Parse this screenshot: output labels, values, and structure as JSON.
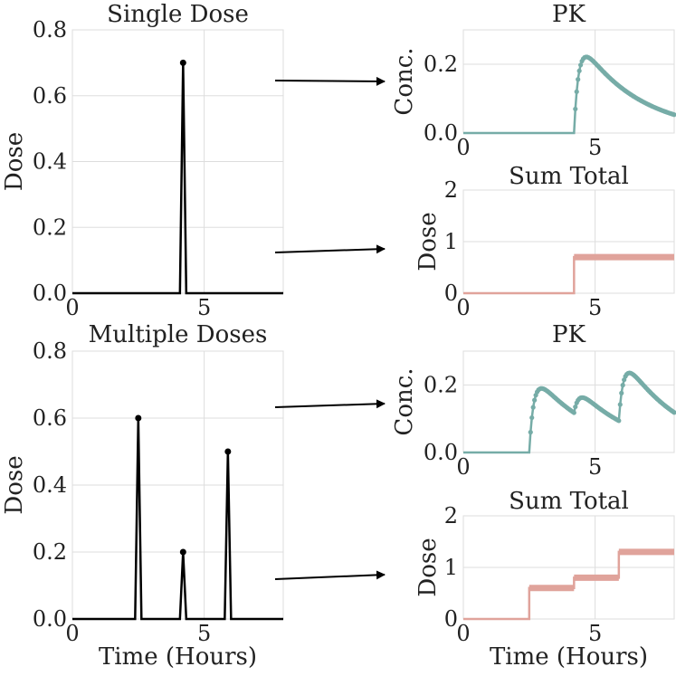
{
  "colors": {
    "dose": "#000000",
    "pk": "#76aca7",
    "sum": "#e0a39b",
    "arrow": "#000000",
    "grid": "#dddddd"
  },
  "shared_xlabel": "Time (Hours)",
  "chart_data": [
    {
      "id": "single-dose",
      "type": "line",
      "title": "Single Dose",
      "ylabel": "Dose",
      "xlabel": "",
      "xlim": [
        0,
        8
      ],
      "ylim": [
        0,
        0.8
      ],
      "xticks": [
        0,
        5
      ],
      "yticks": [
        0.0,
        0.2,
        0.4,
        0.6,
        0.8
      ],
      "ytick_labels": [
        "0.0",
        "0.2",
        "0.4",
        "0.6",
        "0.8"
      ],
      "xtick_labels": [
        "0",
        "5"
      ],
      "series": [
        {
          "style": "impulse",
          "color": "dose",
          "x": [
            4.2
          ],
          "y": [
            0.7
          ]
        }
      ]
    },
    {
      "id": "single-pk",
      "type": "line",
      "title": "PK",
      "ylabel": "Conc.",
      "xlabel": "",
      "xlim": [
        0,
        8
      ],
      "ylim": [
        0,
        0.3
      ],
      "xticks": [
        0,
        5
      ],
      "yticks": [
        0.0,
        0.2
      ],
      "ytick_labels": [
        "0.0",
        "0.2"
      ],
      "xtick_labels": [
        "0",
        "5"
      ],
      "series": [
        {
          "style": "pk",
          "color": "pk",
          "doses": [
            {
              "time": 4.2,
              "amount": 0.7
            }
          ],
          "ka": 6.0,
          "ke": 0.45,
          "scale": 0.39
        }
      ]
    },
    {
      "id": "single-sum",
      "type": "line",
      "title": "Sum Total",
      "ylabel": "Dose",
      "xlabel": "",
      "xlim": [
        0,
        8
      ],
      "ylim": [
        0,
        2
      ],
      "xticks": [
        0,
        5
      ],
      "yticks": [
        0,
        1,
        2
      ],
      "ytick_labels": [
        "0",
        "1",
        "2"
      ],
      "xtick_labels": [
        "0",
        "5"
      ],
      "series": [
        {
          "style": "step",
          "color": "sum",
          "doses": [
            {
              "time": 4.2,
              "amount": 0.7
            }
          ]
        }
      ]
    },
    {
      "id": "multi-dose",
      "type": "line",
      "title": "Multiple Doses",
      "ylabel": "Dose",
      "xlabel": "Time (Hours)",
      "xlim": [
        0,
        8
      ],
      "ylim": [
        0,
        0.8
      ],
      "xticks": [
        0,
        5
      ],
      "yticks": [
        0.0,
        0.2,
        0.4,
        0.6,
        0.8
      ],
      "ytick_labels": [
        "0.0",
        "0.2",
        "0.4",
        "0.6",
        "0.8"
      ],
      "xtick_labels": [
        "0",
        "5"
      ],
      "series": [
        {
          "style": "impulse",
          "color": "dose",
          "x": [
            2.5,
            4.2,
            5.9
          ],
          "y": [
            0.6,
            0.2,
            0.5
          ]
        }
      ]
    },
    {
      "id": "multi-pk",
      "type": "line",
      "title": "PK",
      "ylabel": "Conc.",
      "xlabel": "",
      "xlim": [
        0,
        8
      ],
      "ylim": [
        0,
        0.3
      ],
      "xticks": [
        0,
        5
      ],
      "yticks": [
        0.0,
        0.2
      ],
      "ytick_labels": [
        "0.0",
        "0.2"
      ],
      "xtick_labels": [
        "0",
        "5"
      ],
      "series": [
        {
          "style": "pk",
          "color": "pk",
          "doses": [
            {
              "time": 2.5,
              "amount": 0.6
            },
            {
              "time": 4.2,
              "amount": 0.2
            },
            {
              "time": 5.9,
              "amount": 0.5
            }
          ],
          "ka": 6.0,
          "ke": 0.45,
          "scale": 0.39
        }
      ]
    },
    {
      "id": "multi-sum",
      "type": "line",
      "title": "Sum Total",
      "ylabel": "Dose",
      "xlabel": "Time (Hours)",
      "xlim": [
        0,
        8
      ],
      "ylim": [
        0,
        2
      ],
      "xticks": [
        0,
        5
      ],
      "yticks": [
        0,
        1,
        2
      ],
      "ytick_labels": [
        "0",
        "1",
        "2"
      ],
      "xtick_labels": [
        "0",
        "5"
      ],
      "series": [
        {
          "style": "step",
          "color": "sum",
          "doses": [
            {
              "time": 2.5,
              "amount": 0.6
            },
            {
              "time": 4.2,
              "amount": 0.2
            },
            {
              "time": 5.9,
              "amount": 0.5
            }
          ]
        }
      ]
    }
  ]
}
